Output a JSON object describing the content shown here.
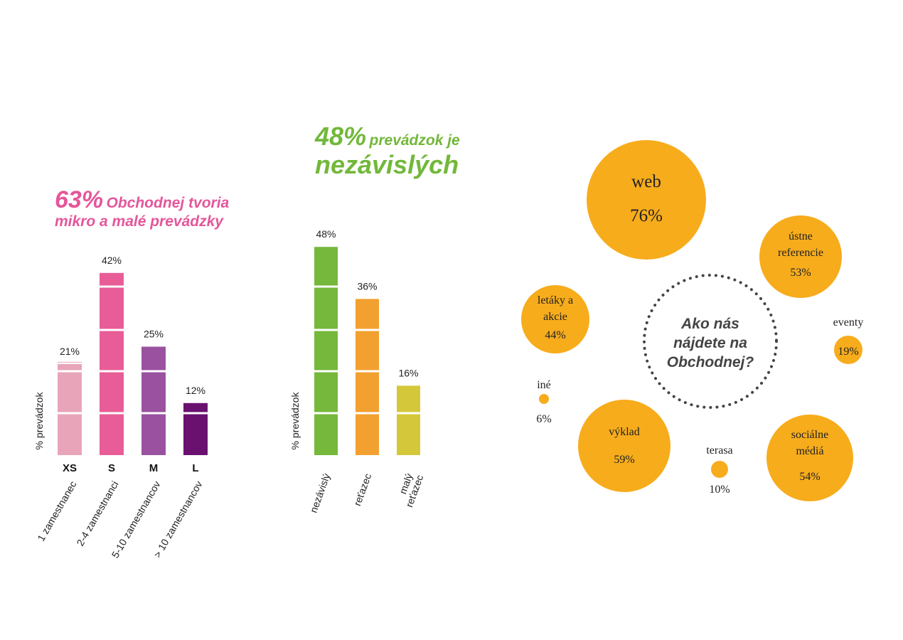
{
  "headline_1": {
    "percent": "63%",
    "line1": "Obchodnej tvoria",
    "line2": "mikro a malé prevádzky",
    "color": "#e4569a"
  },
  "headline_2": {
    "percent": "48%",
    "line1": "prevádzok je",
    "line2": "nezávislých",
    "color": "#72b83a"
  },
  "center_question": [
    "Ako nás",
    "nájdete na",
    "Obchodnej?"
  ],
  "chart_data": [
    {
      "type": "bar",
      "ylabel": "% prevádzok",
      "categories": [
        "XS",
        "S",
        "M",
        "L"
      ],
      "category_descriptions": [
        "1 zamestnanec",
        "2-4 zamestnanci",
        "5-10 zamestnancov",
        "> 10 zamestnancov"
      ],
      "values": [
        21,
        42,
        25,
        12
      ],
      "value_labels": [
        "21%",
        "42%",
        "25%",
        "12%"
      ],
      "colors": [
        "#e8a5ba",
        "#e85d98",
        "#9a52a0",
        "#6a1170"
      ],
      "grid": true
    },
    {
      "type": "bar",
      "ylabel": "% prevádzok",
      "categories": [
        "nezávislý",
        "reťazec",
        "malý reťazec"
      ],
      "category_lines": [
        [
          "nezávislý"
        ],
        [
          "reťazec"
        ],
        [
          "malý",
          "reťazec"
        ]
      ],
      "values": [
        48,
        36,
        16
      ],
      "value_labels": [
        "48%",
        "36%",
        "16%"
      ],
      "colors": [
        "#75b83b",
        "#f2a030",
        "#d4c83a"
      ],
      "grid": true
    },
    {
      "type": "bubble",
      "title": "Ako nás nájdete na Obchodnej?",
      "color": "#f7ac1c",
      "items": [
        {
          "label": [
            "web"
          ],
          "value": 76,
          "value_label": "76%"
        },
        {
          "label": [
            "ústne",
            "referencie"
          ],
          "value": 53,
          "value_label": "53%"
        },
        {
          "label": [
            "letáky a",
            "akcie"
          ],
          "value": 44,
          "value_label": "44%"
        },
        {
          "label": [
            "eventy"
          ],
          "value": 19,
          "value_label": "19%"
        },
        {
          "label": [
            "iné"
          ],
          "value": 6,
          "value_label": "6%"
        },
        {
          "label": [
            "výklad"
          ],
          "value": 59,
          "value_label": "59%"
        },
        {
          "label": [
            "terasa"
          ],
          "value": 10,
          "value_label": "10%"
        },
        {
          "label": [
            "sociálne",
            "médiá"
          ],
          "value": 54,
          "value_label": "54%"
        }
      ]
    }
  ]
}
